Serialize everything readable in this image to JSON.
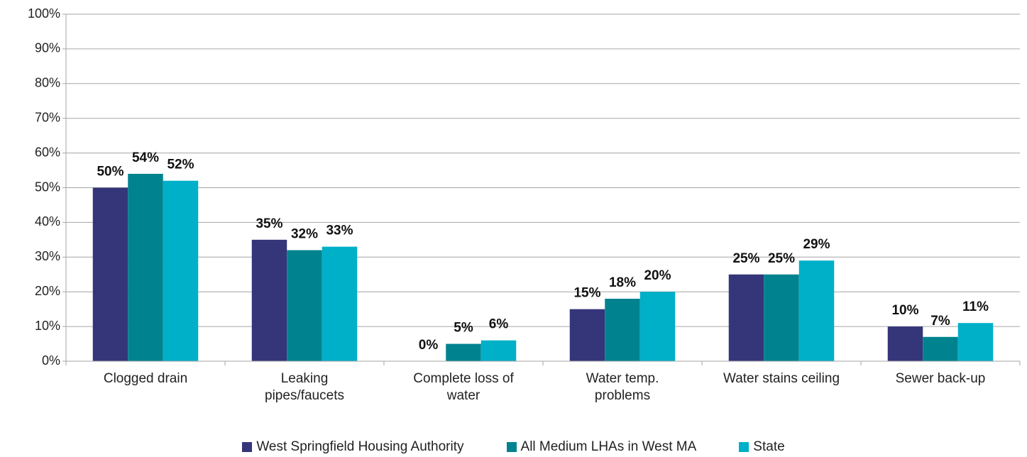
{
  "chart_data": {
    "type": "bar",
    "categories": [
      "Clogged drain",
      "Leaking\npipes/faucets",
      "Complete loss of\nwater",
      "Water temp.\nproblems",
      "Water stains ceiling",
      "Sewer back-up"
    ],
    "series": [
      {
        "name": "West Springfield Housing Authority",
        "color": "#35357a",
        "values": [
          50,
          35,
          0,
          15,
          25,
          10
        ],
        "value_labels": [
          "50%",
          "35%",
          "0%",
          "15%",
          "25%",
          "10%"
        ]
      },
      {
        "name": "All Medium LHAs in West MA",
        "color": "#00838f",
        "values": [
          54,
          32,
          5,
          18,
          25,
          7
        ],
        "value_labels": [
          "54%",
          "32%",
          "5%",
          "18%",
          "25%",
          "7%"
        ]
      },
      {
        "name": "State",
        "color": "#00afc8",
        "values": [
          52,
          33,
          6,
          20,
          29,
          11
        ],
        "value_labels": [
          "52%",
          "33%",
          "6%",
          "20%",
          "29%",
          "11%"
        ]
      }
    ],
    "ylim": [
      0,
      100
    ],
    "yticks": [
      {
        "value": 0,
        "label": "0%"
      },
      {
        "value": 10,
        "label": "10%"
      },
      {
        "value": 20,
        "label": "20%"
      },
      {
        "value": 30,
        "label": "30%"
      },
      {
        "value": 40,
        "label": "40%"
      },
      {
        "value": 50,
        "label": "50%"
      },
      {
        "value": 60,
        "label": "60%"
      },
      {
        "value": 70,
        "label": "70%"
      },
      {
        "value": 80,
        "label": "80%"
      },
      {
        "value": 90,
        "label": "90%"
      },
      {
        "value": 100,
        "label": "100%"
      }
    ],
    "grid": true,
    "legend": "bottom"
  }
}
